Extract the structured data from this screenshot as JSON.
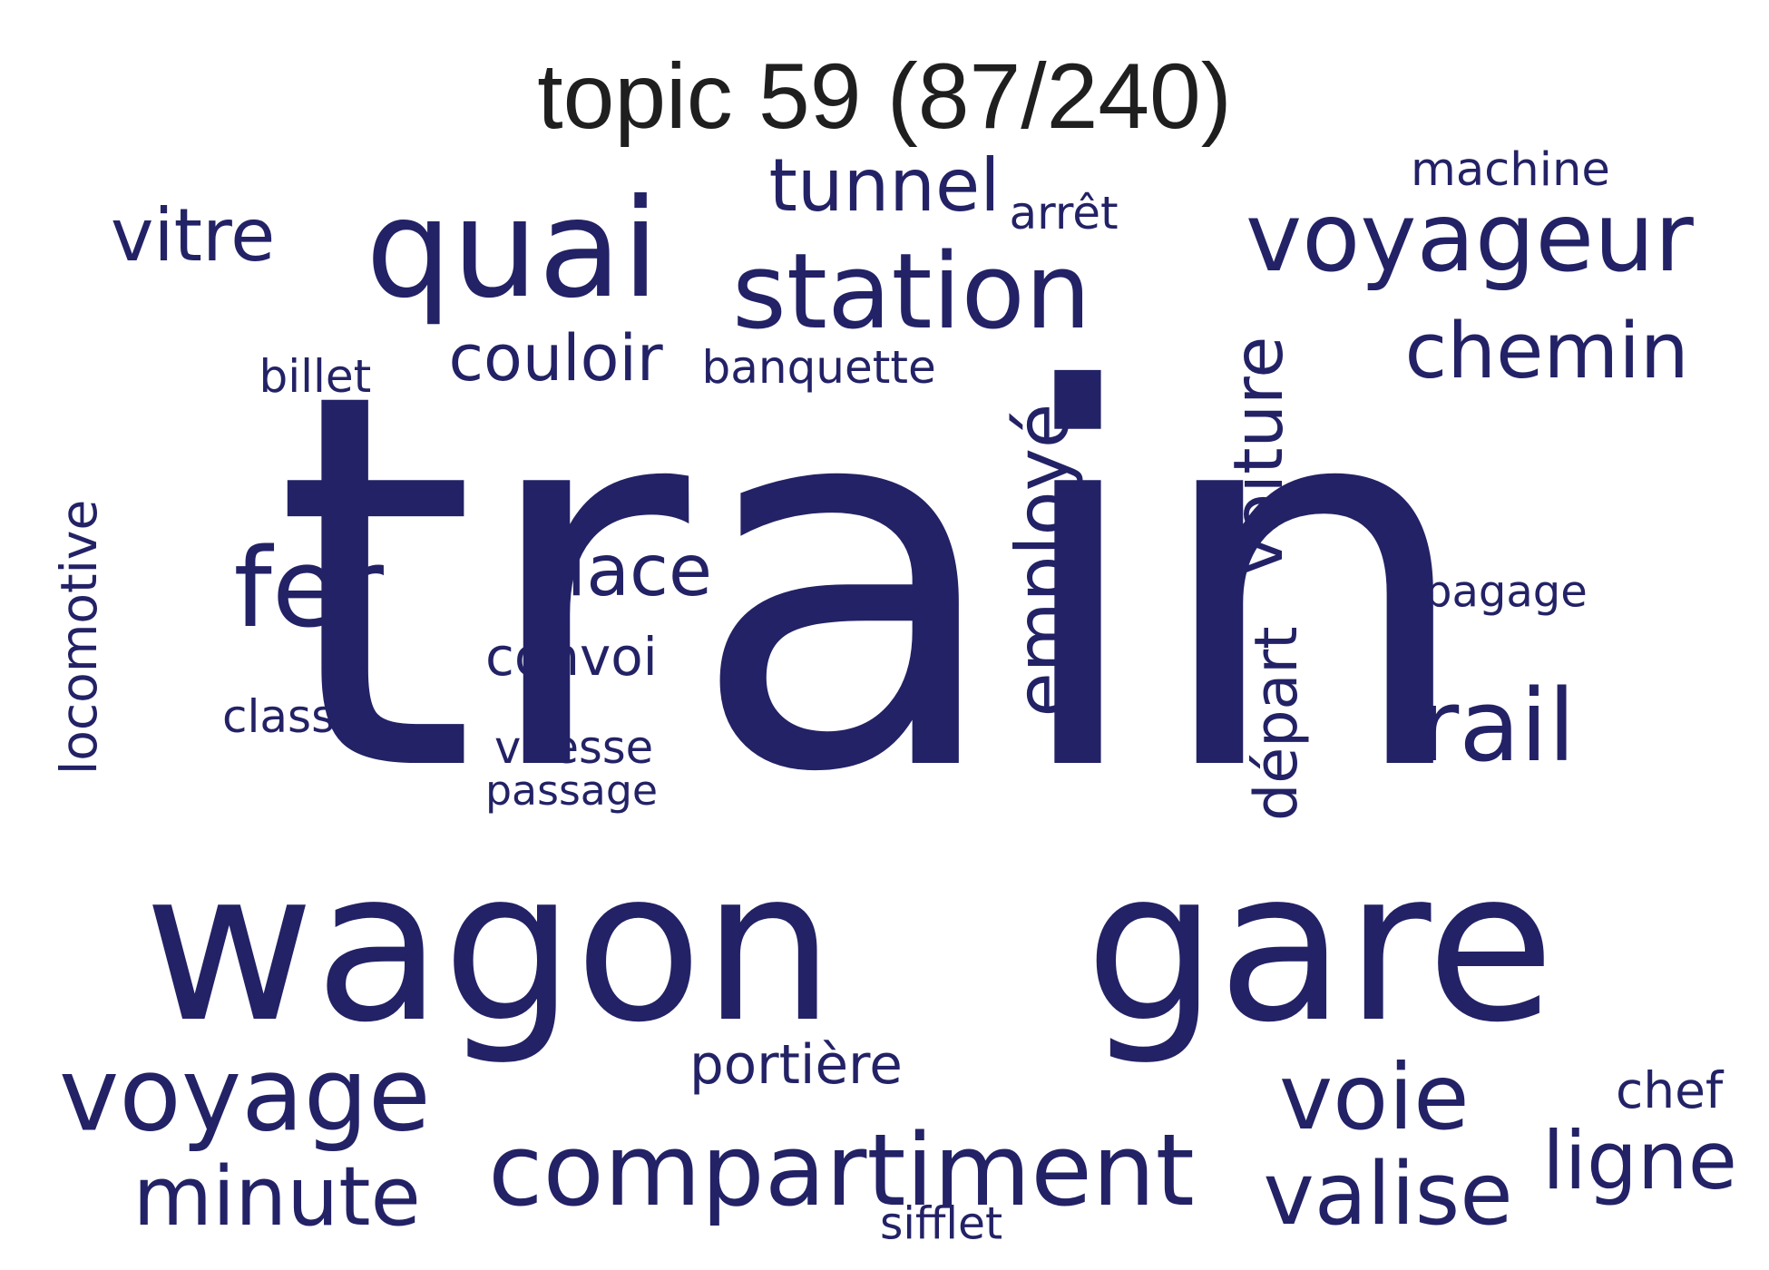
{
  "title": "topic 59 (87/240)",
  "color": "#232266",
  "words": [
    {
      "text": "train",
      "orientation": "horizontal"
    },
    {
      "text": "wagon",
      "orientation": "horizontal"
    },
    {
      "text": "gare",
      "orientation": "horizontal"
    },
    {
      "text": "quai",
      "orientation": "horizontal"
    },
    {
      "text": "station",
      "orientation": "horizontal"
    },
    {
      "text": "voyageur",
      "orientation": "horizontal"
    },
    {
      "text": "compartiment",
      "orientation": "horizontal"
    },
    {
      "text": "voyage",
      "orientation": "horizontal"
    },
    {
      "text": "voie",
      "orientation": "horizontal"
    },
    {
      "text": "valise",
      "orientation": "horizontal"
    },
    {
      "text": "minute",
      "orientation": "horizontal"
    },
    {
      "text": "employé",
      "orientation": "vertical"
    },
    {
      "text": "chemin",
      "orientation": "horizontal"
    },
    {
      "text": "rail",
      "orientation": "horizontal"
    },
    {
      "text": "fer",
      "orientation": "horizontal"
    },
    {
      "text": "voiture",
      "orientation": "vertical"
    },
    {
      "text": "tunnel",
      "orientation": "horizontal"
    },
    {
      "text": "couloir",
      "orientation": "horizontal"
    },
    {
      "text": "vitre",
      "orientation": "horizontal"
    },
    {
      "text": "place",
      "orientation": "horizontal"
    },
    {
      "text": "ligne",
      "orientation": "horizontal"
    },
    {
      "text": "départ",
      "orientation": "vertical"
    },
    {
      "text": "locomotive",
      "orientation": "vertical"
    },
    {
      "text": "portière",
      "orientation": "horizontal"
    },
    {
      "text": "convoi",
      "orientation": "horizontal"
    },
    {
      "text": "chef",
      "orientation": "horizontal"
    },
    {
      "text": "banquette",
      "orientation": "horizontal"
    },
    {
      "text": "vitesse",
      "orientation": "horizontal"
    },
    {
      "text": "passage",
      "orientation": "horizontal"
    },
    {
      "text": "bagage",
      "orientation": "horizontal"
    },
    {
      "text": "machine",
      "orientation": "horizontal"
    },
    {
      "text": "arrêt",
      "orientation": "horizontal"
    },
    {
      "text": "billet",
      "orientation": "horizontal"
    },
    {
      "text": "classe",
      "orientation": "horizontal"
    },
    {
      "text": "sifflet",
      "orientation": "horizontal"
    }
  ]
}
